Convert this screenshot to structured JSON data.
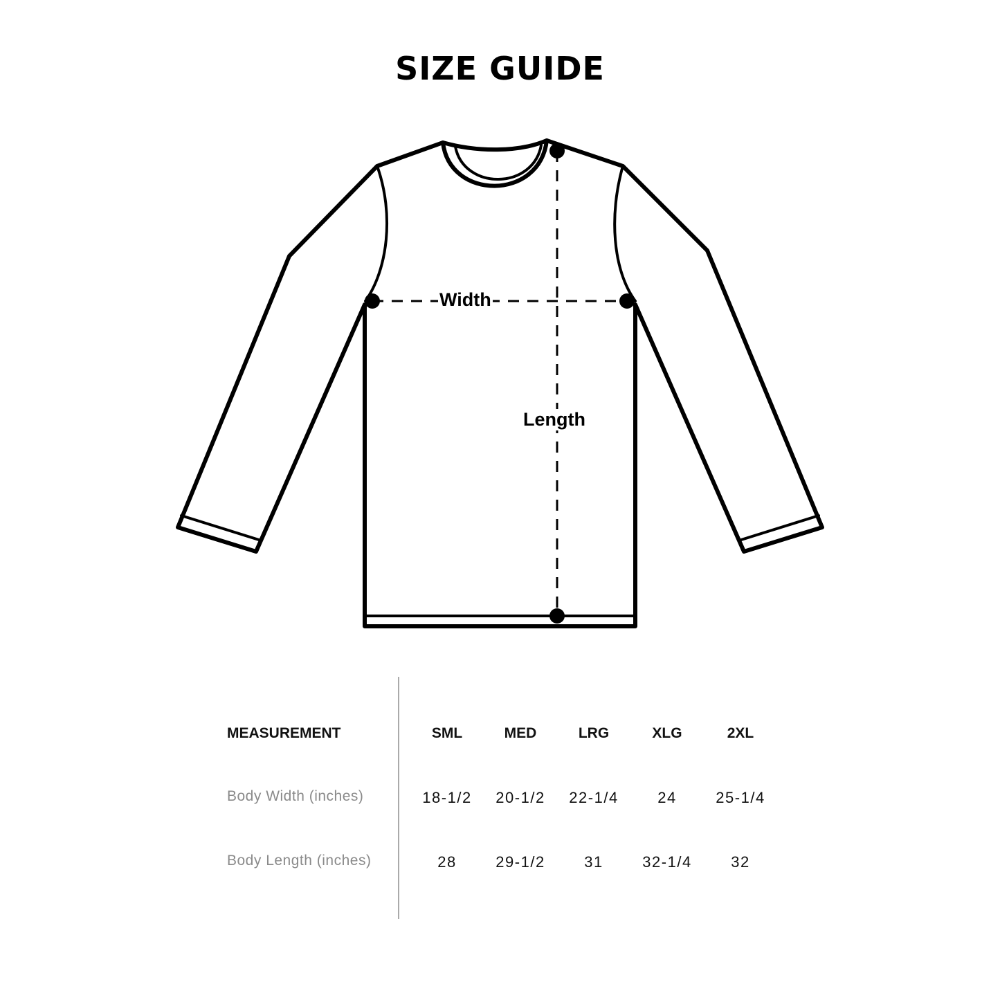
{
  "title": "SIZE GUIDE",
  "diagram": {
    "width_label": "Width",
    "length_label": "Length"
  },
  "table": {
    "header_label": "MEASUREMENT",
    "sizes": [
      "SML",
      "MED",
      "LRG",
      "XLG",
      "2XL"
    ],
    "rows": [
      {
        "label": "Body Width (inches)",
        "values": [
          "18-1/2",
          "20-1/2",
          "22-1/4",
          "24",
          "25-1/4"
        ]
      },
      {
        "label": "Body Length (inches)",
        "values": [
          "28",
          "29-1/2",
          "31",
          "32-1/4",
          "32"
        ]
      }
    ]
  }
}
